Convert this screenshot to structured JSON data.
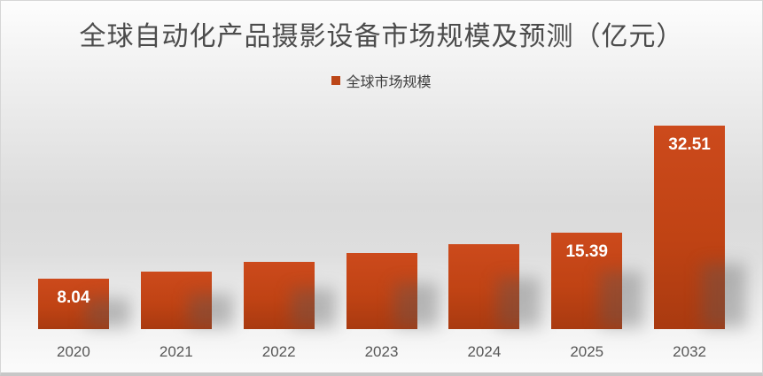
{
  "chart_data": {
    "type": "bar",
    "title": "全球自动化产品摄影设备市场规模及预测（亿元）",
    "legend_position": "top-center",
    "categories": [
      "2020",
      "2021",
      "2022",
      "2023",
      "2024",
      "2025",
      "2032"
    ],
    "series": [
      {
        "name": "全球市场规模",
        "values": [
          8.04,
          9.2,
          10.7,
          12.1,
          13.5,
          15.39,
          32.51
        ]
      }
    ],
    "value_labels": [
      "8.04",
      null,
      null,
      null,
      null,
      "15.39",
      "32.51"
    ],
    "xlabel": "",
    "ylabel": "",
    "ylim": [
      0,
      35
    ],
    "grid": false,
    "y_axis_shown": false,
    "colors": {
      "bar_gradient_top": "#cc4a1c",
      "bar_gradient_bottom": "#a93a10",
      "legend_swatch": "#bc4617",
      "title_text": "#4c4c4c",
      "axis_label_text": "#575757",
      "value_label_text": "#ffffff",
      "background_mid": "#dbdbdb"
    }
  }
}
